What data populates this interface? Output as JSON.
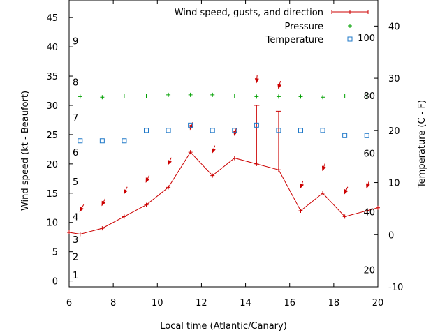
{
  "chart_data": {
    "type": "line",
    "xlabel": "Local time (Atlantic/Canary)",
    "ylabel_left": "Wind speed (kt - Beaufort)",
    "ylabel_right": "Temperature (C - F)",
    "xlim": [
      6,
      20
    ],
    "ylim": [
      -1,
      48
    ],
    "y2lim": [
      -10,
      45
    ],
    "x_ticks": [
      6,
      8,
      10,
      12,
      14,
      16,
      18,
      20
    ],
    "y_ticks": [
      0,
      5,
      10,
      15,
      20,
      25,
      30,
      35,
      40,
      45
    ],
    "y2_ticks": [
      -10,
      0,
      10,
      20,
      30,
      40
    ],
    "beaufort_labels": [
      {
        "label": "1",
        "kt": 1
      },
      {
        "label": "2",
        "kt": 4.2
      },
      {
        "label": "3",
        "kt": 7.1
      },
      {
        "label": "4",
        "kt": 11
      },
      {
        "label": "5",
        "kt": 17
      },
      {
        "label": "6",
        "kt": 22
      },
      {
        "label": "7",
        "kt": 28
      },
      {
        "label": "8",
        "kt": 34
      },
      {
        "label": "9",
        "kt": 41
      }
    ],
    "fahrenheit_labels": [
      {
        "label": "20",
        "c": -6.7
      },
      {
        "label": "40",
        "c": 4.4
      },
      {
        "label": "60",
        "c": 15.6
      },
      {
        "label": "80",
        "c": 26.7
      },
      {
        "label": "100",
        "c": 37.8
      }
    ],
    "series": [
      {
        "name": "Wind speed, gusts, and direction",
        "color": "#cc0000",
        "x": [
          6,
          6.5,
          7.5,
          8.5,
          9.5,
          10.5,
          11.5,
          12.5,
          13.5,
          14.5,
          15.5,
          16.5,
          17.5,
          18.5,
          19.5,
          20
        ],
        "y": [
          8.3,
          8,
          9,
          11,
          13,
          16,
          22,
          18,
          21,
          20,
          19,
          12,
          15,
          11,
          12,
          12.5
        ],
        "gusts": [
          {
            "x": 14.5,
            "y": 30
          },
          {
            "x": 15.5,
            "y": 29
          }
        ],
        "direction_arrows": [
          {
            "x": 6.5,
            "y": 12,
            "angle": 30
          },
          {
            "x": 7.5,
            "y": 13,
            "angle": 25
          },
          {
            "x": 8.5,
            "y": 15,
            "angle": 25
          },
          {
            "x": 9.5,
            "y": 17,
            "angle": 25
          },
          {
            "x": 10.5,
            "y": 20,
            "angle": 25
          },
          {
            "x": 11.5,
            "y": 26,
            "angle": 20
          },
          {
            "x": 12.5,
            "y": 22,
            "angle": 20
          },
          {
            "x": 13.5,
            "y": 25,
            "angle": 15
          },
          {
            "x": 14.5,
            "y": 34,
            "angle": 5
          },
          {
            "x": 15.5,
            "y": 33,
            "angle": 15
          },
          {
            "x": 16.5,
            "y": 16,
            "angle": 20
          },
          {
            "x": 17.5,
            "y": 19,
            "angle": 20
          },
          {
            "x": 18.5,
            "y": 15,
            "angle": 25
          },
          {
            "x": 19.5,
            "y": 16,
            "angle": 20
          }
        ]
      },
      {
        "name": "Pressure",
        "color": "#00a000",
        "x": [
          6.5,
          7.5,
          8.5,
          9.5,
          10.5,
          11.5,
          12.5,
          13.5,
          14.5,
          15.5,
          16.5,
          17.5,
          18.5,
          19.5
        ],
        "y": [
          31.5,
          31.4,
          31.6,
          31.6,
          31.8,
          31.8,
          31.8,
          31.6,
          31.5,
          31.5,
          31.5,
          31.4,
          31.6,
          31.6
        ]
      },
      {
        "name": "Temperature",
        "color": "#1f78c8",
        "x": [
          6.5,
          7.5,
          8.5,
          9.5,
          10.5,
          11.5,
          12.5,
          13.5,
          14.5,
          15.5,
          16.5,
          17.5,
          18.5,
          19.5
        ],
        "y": [
          18,
          18,
          18,
          20,
          20,
          21,
          20,
          20,
          21,
          20,
          20,
          20,
          19,
          19
        ]
      }
    ],
    "legend_position": "top-right"
  }
}
